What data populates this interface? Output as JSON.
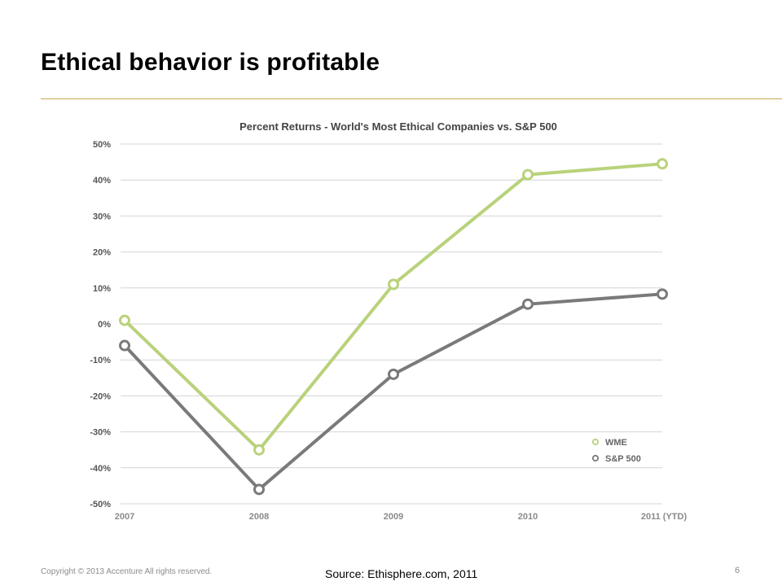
{
  "slide": {
    "title": "Ethical behavior is profitable",
    "copyright": "Copyright © 2013 Accenture  All rights reserved.",
    "source": "Source: Ethisphere.com, 2011",
    "page_number": "6"
  },
  "colors": {
    "wme": "#b9d27b",
    "sp500": "#7a7a7a",
    "grid": "#d4d4d4",
    "title_rule": "#c9a94f",
    "tick_text": "#555555"
  },
  "chart_data": {
    "type": "line",
    "title": "Percent Returns - World's Most Ethical Companies vs. S&P 500",
    "categories": [
      "2007",
      "2008",
      "2009",
      "2010",
      "2011 (YTD)"
    ],
    "series": [
      {
        "name": "WME",
        "values": [
          1,
          -35,
          11,
          41.5,
          44.5
        ]
      },
      {
        "name": "S&P 500",
        "values": [
          -6,
          -46,
          -14,
          5.5,
          8.3
        ]
      }
    ],
    "ylim": [
      -50,
      50
    ],
    "ytick_labels": [
      "50%",
      "40%",
      "30%",
      "20%",
      "10%",
      "0%",
      "-10%",
      "-20%",
      "-30%",
      "-40%",
      "-50%"
    ],
    "ytick_values": [
      50,
      40,
      30,
      20,
      10,
      0,
      -10,
      -20,
      -30,
      -40,
      -50
    ],
    "grid": true,
    "legend_position": "bottom-right"
  }
}
